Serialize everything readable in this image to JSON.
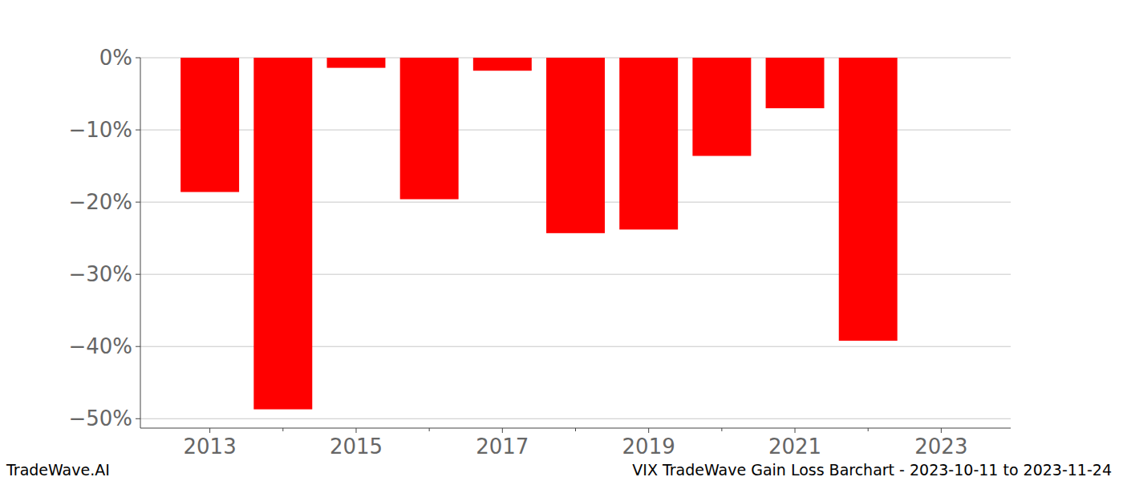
{
  "chart_data": {
    "type": "bar",
    "title": "VIX TradeWave Gain Loss Barchart - 2023-10-11 to 2023-11-24",
    "credit": "TradeWave.AI",
    "x": [
      2013,
      2014,
      2015,
      2016,
      2017,
      2018,
      2019,
      2020,
      2021,
      2022
    ],
    "values": [
      -18.6,
      -48.7,
      -1.4,
      -19.6,
      -1.8,
      -24.3,
      -23.8,
      -13.6,
      -7.0,
      -39.2
    ],
    "color": "#ff0000",
    "xlim": [
      2012.05,
      2023.95
    ],
    "xticks": [
      2013,
      2015,
      2017,
      2019,
      2021,
      2023
    ],
    "ylim": [
      -51.3,
      0
    ],
    "yticks": [
      {
        "value": 0,
        "label": "0%"
      },
      {
        "value": -10,
        "label": "−10%"
      },
      {
        "value": -20,
        "label": "−20%"
      },
      {
        "value": -30,
        "label": "−30%"
      },
      {
        "value": -40,
        "label": "−40%"
      },
      {
        "value": -50,
        "label": "−50%"
      }
    ],
    "grid": true
  }
}
